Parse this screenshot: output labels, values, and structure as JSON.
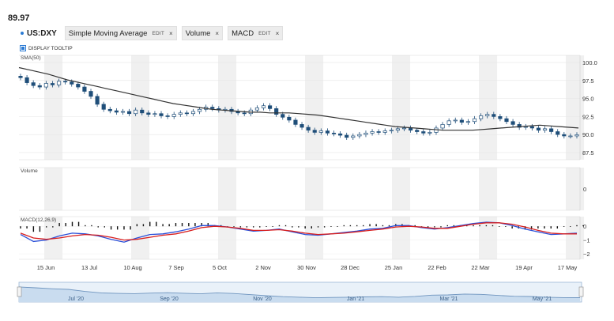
{
  "header": {
    "price": "89.97"
  },
  "toolbar": {
    "symbol": "US:DXY",
    "indicators": [
      {
        "label": "Simple Moving Average",
        "edit": "EDIT",
        "close": "×"
      },
      {
        "label": "Volume",
        "close": "×"
      },
      {
        "label": "MACD",
        "edit": "EDIT",
        "close": "×"
      }
    ]
  },
  "tooltip_toggle": {
    "label": "DISPLAY TOOLTIP",
    "checked": true
  },
  "panels": {
    "price": {
      "label": "SMA(50)"
    },
    "volume": {
      "label": "Volume"
    },
    "macd": {
      "label": "MACD(12,26,9)"
    }
  },
  "colors": {
    "candle_up": "#ffffff",
    "candle_down": "#1f4e79",
    "sma": "#333333",
    "macd": "#2a4fd8",
    "signal": "#d81e1e",
    "histogram": "#111111",
    "navigator_fill": "#c9dcef",
    "navigator_line": "#6f95bf",
    "band": "#f0f0f0"
  },
  "chart_data": [
    {
      "type": "candlestick",
      "title": "US:DXY",
      "x_ticks": [
        "15 Jun",
        "13 Jul",
        "10 Aug",
        "7 Sep",
        "5 Oct",
        "2 Nov",
        "30 Nov",
        "28 Dec",
        "25 Jan",
        "22 Feb",
        "22 Mar",
        "19 Apr",
        "17 May"
      ],
      "y_ticks": [
        87.5,
        90.0,
        92.5,
        95.0,
        97.5,
        100.0
      ],
      "ylim": [
        86.5,
        101.0
      ],
      "series": [
        {
          "name": "US:DXY",
          "values": [
            97.9,
            97.2,
            96.8,
            96.6,
            97.1,
            96.9,
            97.4,
            97.3,
            97.0,
            96.6,
            96.0,
            95.3,
            94.2,
            93.5,
            93.3,
            93.1,
            93.2,
            92.9,
            93.4,
            93.0,
            92.8,
            92.9,
            92.6,
            92.5,
            92.8,
            93.0,
            92.9,
            93.2,
            93.5,
            93.8,
            93.6,
            93.4,
            93.5,
            93.2,
            93.0,
            92.9,
            93.4,
            93.7,
            94.0,
            93.6,
            92.8,
            92.4,
            92.0,
            91.4,
            91.0,
            90.6,
            90.3,
            90.5,
            90.2,
            90.1,
            89.9,
            89.6,
            89.8,
            90.0,
            90.2,
            90.4,
            90.3,
            90.5,
            90.6,
            90.8,
            90.9,
            90.6,
            90.4,
            90.2,
            90.3,
            90.9,
            91.4,
            91.9,
            92.0,
            91.7,
            91.8,
            92.2,
            92.6,
            92.8,
            92.5,
            92.2,
            91.8,
            91.4,
            91.0,
            91.1,
            90.9,
            90.6,
            90.8,
            90.4,
            90.0,
            89.8,
            89.8,
            89.97
          ]
        }
      ],
      "sma_label": "SMA(50)",
      "sma_values": [
        99.3,
        99.0,
        98.7,
        98.4,
        98.0,
        97.6,
        97.3,
        97.0,
        96.7,
        96.4,
        96.1,
        95.8,
        95.5,
        95.2,
        94.9,
        94.6,
        94.3,
        94.1,
        93.9,
        93.7,
        93.5,
        93.4,
        93.3,
        93.2,
        93.1,
        93.1,
        93.0,
        93.0,
        93.0,
        92.9,
        92.8,
        92.7,
        92.5,
        92.3,
        92.1,
        91.9,
        91.7,
        91.5,
        91.3,
        91.1,
        91.0,
        90.9,
        90.8,
        90.7,
        90.6,
        90.6,
        90.6,
        90.6,
        90.7,
        90.8,
        90.9,
        91.0,
        91.1,
        91.2,
        91.3,
        91.2,
        91.1,
        91.0,
        90.9
      ]
    },
    {
      "type": "bar",
      "title": "Volume",
      "y_ticks": [
        0
      ],
      "values": []
    },
    {
      "type": "line",
      "title": "MACD(12,26,9)",
      "y_ticks": [
        0,
        -1,
        -2
      ],
      "ylim": [
        -2.4,
        0.7
      ],
      "series": [
        {
          "name": "MACD",
          "values": [
            -0.6,
            -1.1,
            -1.0,
            -0.7,
            -0.5,
            -0.55,
            -0.7,
            -0.95,
            -1.15,
            -0.85,
            -0.6,
            -0.55,
            -0.4,
            -0.2,
            0.05,
            0.05,
            -0.05,
            -0.2,
            -0.35,
            -0.3,
            -0.2,
            -0.4,
            -0.6,
            -0.65,
            -0.55,
            -0.45,
            -0.35,
            -0.2,
            -0.15,
            0.05,
            0.05,
            -0.1,
            -0.2,
            -0.1,
            0.05,
            0.2,
            0.3,
            0.25,
            0.05,
            -0.2,
            -0.4,
            -0.6,
            -0.55,
            -0.5
          ]
        },
        {
          "name": "Signal",
          "values": [
            -0.5,
            -0.85,
            -0.95,
            -0.85,
            -0.7,
            -0.6,
            -0.65,
            -0.8,
            -1.0,
            -0.95,
            -0.8,
            -0.65,
            -0.55,
            -0.35,
            -0.1,
            0.0,
            -0.05,
            -0.15,
            -0.3,
            -0.3,
            -0.25,
            -0.35,
            -0.5,
            -0.6,
            -0.55,
            -0.5,
            -0.4,
            -0.3,
            -0.2,
            -0.05,
            0.0,
            -0.05,
            -0.15,
            -0.15,
            0.0,
            0.15,
            0.25,
            0.25,
            0.15,
            -0.05,
            -0.3,
            -0.5,
            -0.55,
            -0.55
          ]
        }
      ]
    }
  ],
  "navigator": {
    "labels": [
      "Jul '20",
      "Sep '20",
      "Nov '20",
      "Jan '21",
      "Mar '21",
      "May '21"
    ],
    "values": [
      97.8,
      97.2,
      96.5,
      96.0,
      94.5,
      93.4,
      93.1,
      92.9,
      93.3,
      93.6,
      93.2,
      92.8,
      93.5,
      93.0,
      92.2,
      91.4,
      90.7,
      90.3,
      89.9,
      90.1,
      90.3,
      90.5,
      90.7,
      90.3,
      90.9,
      91.8,
      92.0,
      92.6,
      92.4,
      91.6,
      91.0,
      90.8,
      90.3,
      90.0,
      89.97
    ],
    "left_handle": "‖",
    "right_handle": "‖"
  }
}
